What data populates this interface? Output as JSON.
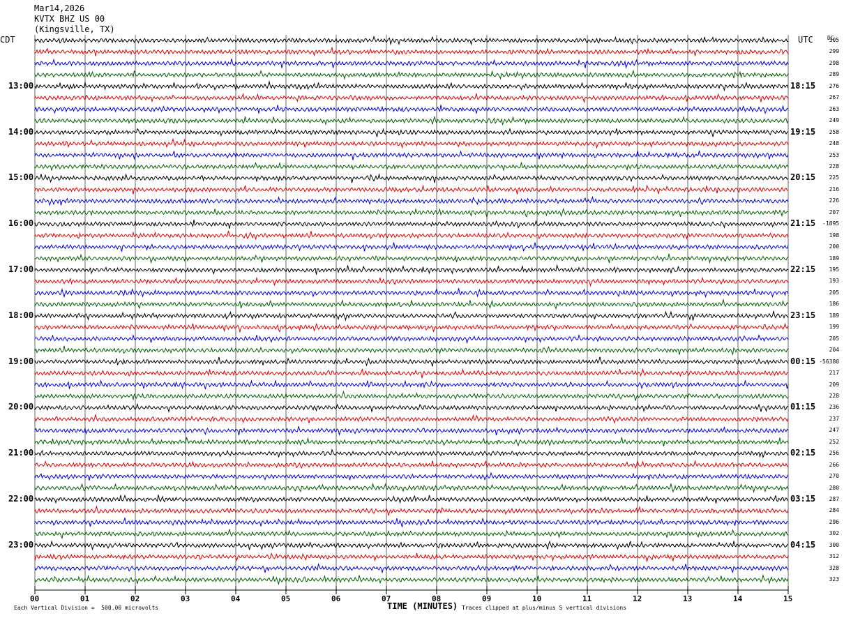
{
  "header": {
    "date": "Mar14,2026",
    "station": "KVTX BHZ US 00",
    "location": "(Kingsville, TX)"
  },
  "axes": {
    "left_zone": "CDT",
    "right_zone": "UTC",
    "dc_header": "DC",
    "xlabel": "TIME (MINUTES)"
  },
  "footer": {
    "scale": "Each Vertical Division =  500.00 microvolts",
    "clip": "Traces clipped at plus/minus 5 vertical divisions"
  },
  "colors": [
    "#000000",
    "#e00000",
    "#0000e0",
    "#006000"
  ],
  "chart_data": {
    "type": "line",
    "title": "",
    "xlabel": "TIME (MINUTES)",
    "xlim": [
      0,
      15
    ],
    "x_ticks": [
      "00",
      "01",
      "02",
      "03",
      "04",
      "05",
      "06",
      "07",
      "08",
      "09",
      "10",
      "11",
      "12",
      "13",
      "14",
      "15"
    ],
    "rows": 48,
    "minutes_per_row": 15,
    "left_ticks": [
      "13:00",
      "14:00",
      "15:00",
      "16:00",
      "17:00",
      "18:00",
      "19:00",
      "20:00",
      "21:00",
      "22:00",
      "23:00"
    ],
    "right_ticks": [
      "18:15",
      "19:15",
      "20:15",
      "21:15",
      "22:15",
      "23:15",
      "00:15",
      "01:15",
      "02:15",
      "03:15",
      "04:15"
    ],
    "dc_offsets": [
      "305",
      "299",
      "298",
      "289",
      "276",
      "267",
      "263",
      "249",
      "258",
      "248",
      "253",
      "228",
      "225",
      "216",
      "226",
      "207",
      "-1895",
      "198",
      "200",
      "189",
      "195",
      "193",
      "205",
      "186",
      "189",
      "199",
      "205",
      "204",
      "-56380",
      "217",
      "209",
      "228",
      "236",
      "237",
      "247",
      "252",
      "256",
      "266",
      "270",
      "280",
      "287",
      "284",
      "296",
      "302",
      "300",
      "312",
      "328",
      "323"
    ]
  }
}
